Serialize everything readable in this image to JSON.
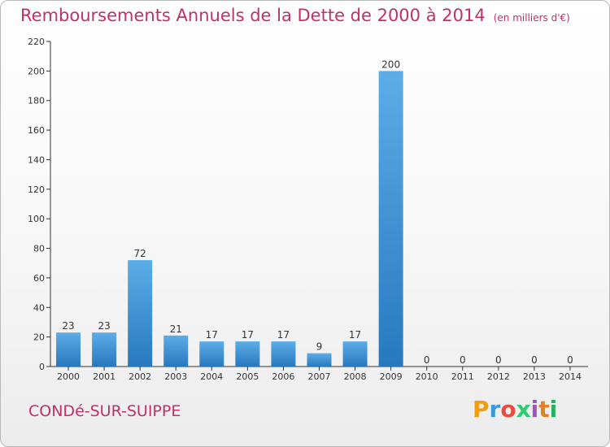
{
  "header": {
    "title": "Remboursements Annuels de la Dette de 2000 à 2014",
    "unit": "(en milliers d'€)"
  },
  "footer": {
    "city": "CONDé-SUR-SUIPPE",
    "brand_letters": [
      "P",
      "r",
      "o",
      "x",
      "i",
      "t",
      "i"
    ],
    "brand_colors": [
      "#f39c12",
      "#3b9ad9",
      "#e74c3c",
      "#2ecc71",
      "#9b59b6",
      "#e67e22",
      "#27ae60"
    ]
  },
  "colors": {
    "title": "#c0306a",
    "bar_top": "#5dade8",
    "bar_bottom": "#2878be"
  },
  "chart_data": {
    "type": "bar",
    "title": "Remboursements Annuels de la Dette de 2000 à 2014",
    "ylabel": "",
    "xlabel": "",
    "categories": [
      "2000",
      "2001",
      "2002",
      "2003",
      "2004",
      "2005",
      "2006",
      "2007",
      "2008",
      "2009",
      "2010",
      "2011",
      "2012",
      "2013",
      "2014"
    ],
    "values": [
      23,
      23,
      72,
      21,
      17,
      17,
      17,
      9,
      17,
      200,
      0,
      0,
      0,
      0,
      0
    ],
    "ylim": [
      0,
      220
    ],
    "yticks": [
      0,
      20,
      40,
      60,
      80,
      100,
      120,
      140,
      160,
      180,
      200,
      220
    ],
    "grid": false
  }
}
